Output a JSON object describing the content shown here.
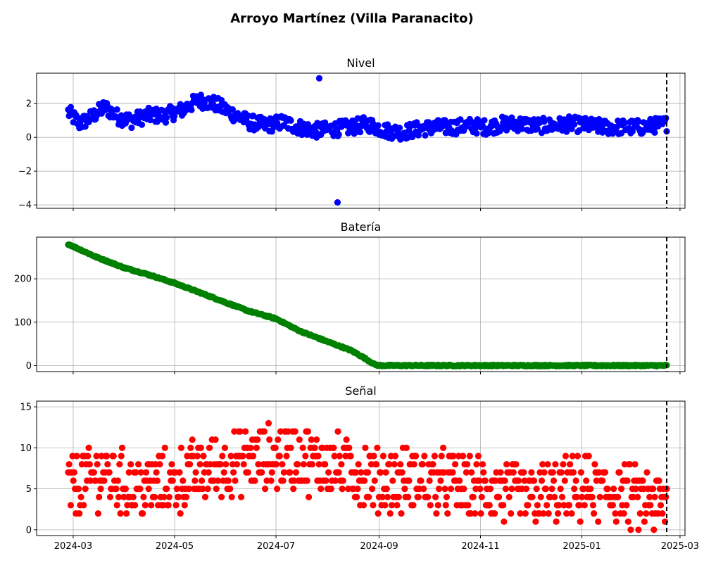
{
  "figure": {
    "title": "Arroyo Martínez (Villa Paranacito)"
  },
  "chart_data": [
    {
      "type": "scatter",
      "title": "Nivel",
      "color": "#0000ff",
      "xlabel": "",
      "ylabel": "",
      "xlim": [
        "2024-02-08",
        "2025-03-04"
      ],
      "ylim": [
        -4.2,
        3.8
      ],
      "yticks": [
        -4,
        -2,
        0,
        2
      ],
      "ytick_labels": [
        "−4",
        "−2",
        "0",
        "2"
      ],
      "grid": true,
      "anchors": [
        [
          "2024-02-27",
          1.5
        ],
        [
          "2024-03-05",
          0.8
        ],
        [
          "2024-03-12",
          1.2
        ],
        [
          "2024-03-20",
          1.8
        ],
        [
          "2024-03-28",
          1.2
        ],
        [
          "2024-04-05",
          1.0
        ],
        [
          "2024-04-15",
          1.3
        ],
        [
          "2024-04-25",
          1.3
        ],
        [
          "2024-05-05",
          1.6
        ],
        [
          "2024-05-15",
          2.2
        ],
        [
          "2024-05-25",
          2.0
        ],
        [
          "2024-06-05",
          1.4
        ],
        [
          "2024-06-15",
          0.9
        ],
        [
          "2024-06-25",
          0.7
        ],
        [
          "2024-07-05",
          0.9
        ],
        [
          "2024-07-15",
          0.6
        ],
        [
          "2024-07-25",
          0.4
        ],
        [
          "2024-08-05",
          0.5
        ],
        [
          "2024-08-15",
          0.6
        ],
        [
          "2024-08-25",
          0.8
        ],
        [
          "2024-09-05",
          0.4
        ],
        [
          "2024-09-15",
          0.3
        ],
        [
          "2024-09-25",
          0.5
        ],
        [
          "2024-10-05",
          0.6
        ],
        [
          "2024-10-15",
          0.6
        ],
        [
          "2024-10-25",
          0.7
        ],
        [
          "2024-11-05",
          0.6
        ],
        [
          "2024-11-15",
          0.8
        ],
        [
          "2024-11-25",
          0.8
        ],
        [
          "2024-12-05",
          0.7
        ],
        [
          "2024-12-15",
          0.7
        ],
        [
          "2024-12-25",
          0.8
        ],
        [
          "2025-01-05",
          0.7
        ],
        [
          "2025-01-15",
          0.6
        ],
        [
          "2025-01-25",
          0.6
        ],
        [
          "2025-02-05",
          0.6
        ],
        [
          "2025-02-21",
          0.8
        ]
      ],
      "spread": 0.45,
      "outliers": [
        [
          "2024-07-27",
          3.5
        ],
        [
          "2024-08-07",
          -3.85
        ]
      ],
      "date_range": [
        "2024-02-27",
        "2025-02-21"
      ],
      "marker_line": "2025-02-21"
    },
    {
      "type": "scatter",
      "title": "Batería",
      "color": "#008000",
      "xlabel": "",
      "ylabel": "",
      "xlim": [
        "2024-02-08",
        "2025-03-04"
      ],
      "ylim": [
        -14,
        296
      ],
      "yticks": [
        0,
        100,
        200
      ],
      "ytick_labels": [
        "0",
        "100",
        "200"
      ],
      "grid": true,
      "anchors": [
        [
          "2024-02-27",
          280
        ],
        [
          "2024-03-15",
          250
        ],
        [
          "2024-04-01",
          225
        ],
        [
          "2024-04-15",
          210
        ],
        [
          "2024-05-01",
          190
        ],
        [
          "2024-05-15",
          170
        ],
        [
          "2024-06-01",
          145
        ],
        [
          "2024-06-15",
          125
        ],
        [
          "2024-07-01",
          108
        ],
        [
          "2024-07-05",
          100
        ],
        [
          "2024-07-15",
          80
        ],
        [
          "2024-08-01",
          55
        ],
        [
          "2024-08-15",
          35
        ],
        [
          "2024-08-22",
          20
        ],
        [
          "2024-08-29",
          3
        ],
        [
          "2024-09-01",
          0
        ],
        [
          "2025-02-21",
          0
        ]
      ],
      "spread": 1.5,
      "date_range": [
        "2024-02-27",
        "2025-02-21"
      ],
      "marker_line": "2025-02-21"
    },
    {
      "type": "scatter",
      "title": "Señal",
      "color": "#ff0000",
      "xlabel": "",
      "ylabel": "",
      "xlim": [
        "2024-02-08",
        "2025-03-04"
      ],
      "ylim": [
        -0.7,
        15.7
      ],
      "yticks": [
        0,
        5,
        10,
        15
      ],
      "ytick_labels": [
        "0",
        "5",
        "10",
        "15"
      ],
      "grid": true,
      "anchors": [
        [
          "2024-02-27",
          5
        ],
        [
          "2024-03-20",
          7
        ],
        [
          "2024-04-10",
          5
        ],
        [
          "2024-05-01",
          6
        ],
        [
          "2024-06-01",
          8
        ],
        [
          "2024-07-05",
          9
        ],
        [
          "2024-08-05",
          8
        ],
        [
          "2024-09-01",
          6
        ],
        [
          "2024-10-01",
          6
        ],
        [
          "2024-11-01",
          5
        ],
        [
          "2024-12-01",
          4
        ],
        [
          "2025-01-01",
          5
        ],
        [
          "2025-02-01",
          4
        ],
        [
          "2025-02-21",
          3
        ]
      ],
      "spread": 3.5,
      "integer": true,
      "date_range": [
        "2024-02-27",
        "2025-02-21"
      ],
      "marker_line": "2025-02-21"
    }
  ],
  "xaxis": {
    "ticks": [
      "2024-03-01",
      "2024-05-01",
      "2024-07-01",
      "2024-09-01",
      "2024-11-01",
      "2025-01-01",
      "2025-03-01"
    ],
    "tick_labels": [
      "2024-03",
      "2024-05",
      "2024-07",
      "2024-09",
      "2024-11",
      "2025-01",
      "2025-03"
    ]
  }
}
